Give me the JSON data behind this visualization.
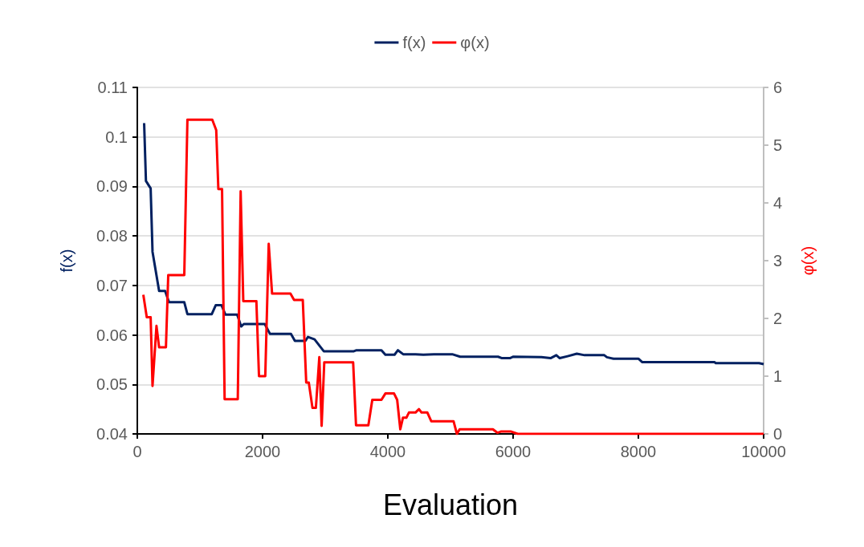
{
  "chart_data": {
    "type": "line",
    "xlabel": "Evaluation",
    "ylabel": "f(x)",
    "y2label": "φ(x)",
    "xlim": [
      0,
      10000
    ],
    "xticks": [
      0,
      2000,
      4000,
      6000,
      8000,
      10000
    ],
    "ylim": [
      0.04,
      0.11
    ],
    "yticks": [
      0.04,
      0.05,
      0.06,
      0.07,
      0.08,
      0.09,
      0.1,
      0.11
    ],
    "y2lim": [
      0,
      6
    ],
    "y2ticks": [
      0,
      1,
      2,
      3,
      4,
      5,
      6
    ],
    "grid": "y",
    "legend": "top",
    "series": [
      {
        "name": "f(x)",
        "color": "#002060",
        "x": [
          109,
          138,
          213,
          243,
          348,
          444,
          506,
          750,
          800,
          1189,
          1252,
          1344,
          1407,
          1595,
          1658,
          1700,
          2035,
          2119,
          2453,
          2516,
          2684,
          2725,
          2830,
          2977,
          3458,
          3500,
          3898,
          3961,
          4107,
          4161,
          4245,
          4442,
          4567,
          4735,
          5028,
          5154,
          5760,
          5823,
          5949,
          6004,
          6452,
          6598,
          6690,
          6745,
          6871,
          7017,
          7142,
          7456,
          7498,
          7603,
          8000,
          8063,
          9215,
          9236,
          9926,
          10000
        ],
        "values": [
          0.1028,
          0.0911,
          0.0896,
          0.0768,
          0.0689,
          0.0689,
          0.0666,
          0.0666,
          0.0642,
          0.0642,
          0.066,
          0.066,
          0.0641,
          0.0641,
          0.0617,
          0.0622,
          0.0622,
          0.0602,
          0.0602,
          0.0588,
          0.0588,
          0.0596,
          0.0591,
          0.0567,
          0.0567,
          0.0569,
          0.0569,
          0.056,
          0.056,
          0.0569,
          0.0561,
          0.0561,
          0.056,
          0.0561,
          0.0561,
          0.0556,
          0.0556,
          0.0553,
          0.0553,
          0.0556,
          0.0555,
          0.0553,
          0.0559,
          0.0553,
          0.0557,
          0.0562,
          0.0559,
          0.0559,
          0.0555,
          0.0552,
          0.0552,
          0.0545,
          0.0545,
          0.0543,
          0.0543,
          0.0541
        ]
      },
      {
        "name": "φ(x)",
        "color": "#ff0000",
        "axis": "y2",
        "x": [
          96,
          151,
          213,
          243,
          306,
          348,
          457,
          494,
          750,
          800,
          1197,
          1260,
          1294,
          1353,
          1394,
          1604,
          1650,
          1692,
          1901,
          1943,
          2043,
          2098,
          2152,
          2445,
          2503,
          2642,
          2697,
          2738,
          2797,
          2851,
          2906,
          2943,
          2985,
          3446,
          3492,
          3689,
          3752,
          3898,
          3961,
          4099,
          4149,
          4199,
          4241,
          4296,
          4337,
          4442,
          4497,
          4538,
          4631,
          4693,
          5049,
          5103,
          5146,
          5677,
          5749,
          5803,
          5970,
          6075,
          10000
        ],
        "values": [
          2.41,
          2.02,
          2.02,
          0.83,
          1.87,
          1.5,
          1.5,
          2.75,
          2.75,
          5.44,
          5.44,
          5.26,
          4.24,
          4.24,
          0.6,
          0.6,
          4.2,
          2.3,
          2.3,
          1.0,
          1.0,
          3.29,
          2.43,
          2.43,
          2.32,
          2.32,
          0.89,
          0.89,
          0.45,
          0.45,
          1.33,
          0.14,
          1.24,
          1.24,
          0.15,
          0.15,
          0.59,
          0.59,
          0.7,
          0.7,
          0.59,
          0.08,
          0.28,
          0.28,
          0.37,
          0.37,
          0.43,
          0.37,
          0.37,
          0.22,
          0.22,
          0,
          0.08,
          0.08,
          0.02,
          0.04,
          0.04,
          0,
          0
        ]
      }
    ]
  }
}
